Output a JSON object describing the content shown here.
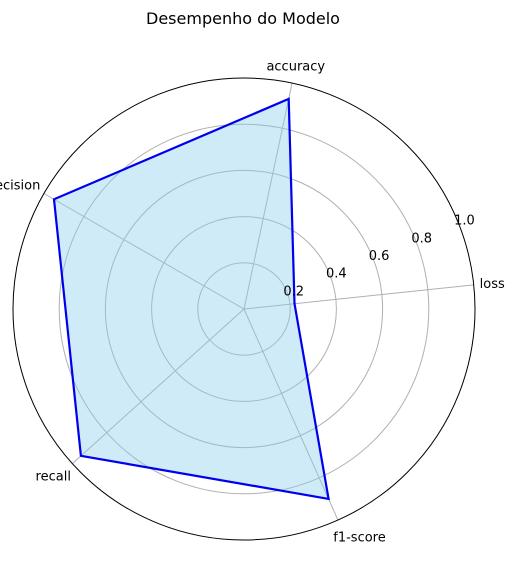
{
  "chart_data": {
    "type": "radar",
    "title": "Desempenho do Modelo",
    "axes": [
      "accuracy",
      "precision",
      "recall",
      "f1-score",
      "loss"
    ],
    "values": [
      0.93,
      0.95,
      0.95,
      0.9,
      0.22
    ],
    "r_ticks": [
      0.2,
      0.4,
      0.6,
      0.8,
      1.0
    ],
    "r_tick_labels": [
      "0.2",
      "0.4",
      "0.6",
      "0.8",
      "1.0"
    ],
    "rlim": [
      0,
      1
    ],
    "grid": true,
    "line_color": "#0000ee",
    "fill_color": "#87ceeb",
    "grid_color": "#b0b0b0"
  }
}
